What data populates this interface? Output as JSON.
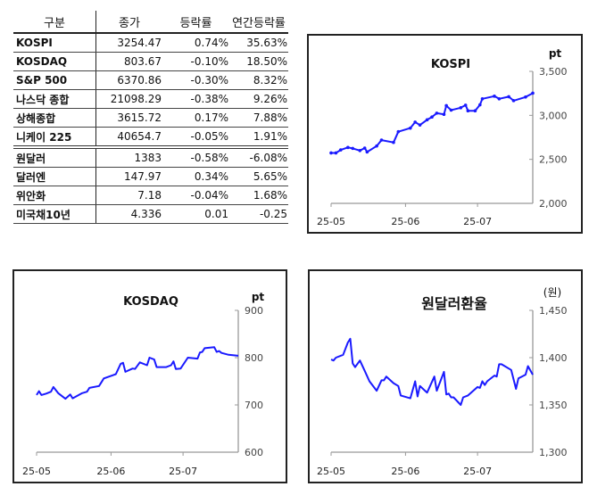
{
  "table": {
    "headers": [
      "구분",
      "종가",
      "등락률",
      "연간등락률"
    ],
    "rows": [
      [
        "KOSPI",
        "3254.47",
        "0.74%",
        "35.63%"
      ],
      [
        "KOSDAQ",
        "803.67",
        "-0.10%",
        "18.50%"
      ],
      [
        "S&P 500",
        "6370.86",
        "-0.30%",
        "8.32%"
      ],
      [
        "나스닥 종합",
        "21098.29",
        "-0.38%",
        "9.26%"
      ],
      [
        "상해종합",
        "3615.72",
        "0.17%",
        "7.88%"
      ],
      [
        "니케이 225",
        "40654.7",
        "-0.05%",
        "1.91%"
      ],
      [
        "원달러",
        "1383",
        "-0.58%",
        "-6.08%"
      ],
      [
        "달러엔",
        "147.97",
        "0.34%",
        "5.65%"
      ],
      [
        "위안화",
        "7.18",
        "-0.04%",
        "1.68%"
      ],
      [
        "미국채10년",
        "4.336",
        "0.01",
        "-0.25"
      ]
    ]
  },
  "chart_data": [
    {
      "type": "line",
      "title": "KOSPI",
      "unit": "pt",
      "color": "#1a1aff",
      "markers": true,
      "x_ticks": [
        "25-05",
        "25-06",
        "25-07"
      ],
      "y_ticks": [
        "2,000",
        "2,500",
        "3,000",
        "3,500"
      ],
      "ylim": [
        2000,
        3500
      ],
      "xlim": [
        "2025-05-01",
        "2025-07-24"
      ],
      "x": [
        "2025-05-01",
        "2025-05-03",
        "2025-05-05",
        "2025-05-08",
        "2025-05-10",
        "2025-05-13",
        "2025-05-15",
        "2025-05-16",
        "2025-05-20",
        "2025-05-22",
        "2025-05-27",
        "2025-05-29",
        "2025-06-03",
        "2025-06-05",
        "2025-06-07",
        "2025-06-10",
        "2025-06-12",
        "2025-06-14",
        "2025-06-17",
        "2025-06-18",
        "2025-06-20",
        "2025-06-24",
        "2025-06-26",
        "2025-06-27",
        "2025-06-30",
        "2025-07-02",
        "2025-07-03",
        "2025-07-08",
        "2025-07-10",
        "2025-07-14",
        "2025-07-16",
        "2025-07-21",
        "2025-07-24"
      ],
      "y": [
        2573,
        2573,
        2607,
        2635,
        2624,
        2600,
        2628,
        2584,
        2652,
        2719,
        2692,
        2814,
        2855,
        2923,
        2890,
        2950,
        2981,
        3025,
        3011,
        3110,
        3059,
        3086,
        3116,
        3052,
        3052,
        3120,
        3188,
        3218,
        3188,
        3212,
        3167,
        3208,
        3252
      ]
    },
    {
      "type": "line",
      "title": "KOSDAQ",
      "unit": "pt",
      "color": "#1a1aff",
      "markers": false,
      "x_ticks": [
        "25-05",
        "25-06",
        "25-07"
      ],
      "y_ticks": [
        "600",
        "700",
        "800",
        "900"
      ],
      "ylim": [
        600,
        900
      ],
      "xlim": [
        "2025-05-01",
        "2025-07-24"
      ],
      "x": [
        "2025-05-01",
        "2025-05-02",
        "2025-05-03",
        "2025-05-05",
        "2025-05-07",
        "2025-05-08",
        "2025-05-10",
        "2025-05-13",
        "2025-05-15",
        "2025-05-16",
        "2025-05-20",
        "2025-05-22",
        "2025-05-23",
        "2025-05-27",
        "2025-05-29",
        "2025-06-03",
        "2025-06-05",
        "2025-06-06",
        "2025-06-07",
        "2025-06-10",
        "2025-06-11",
        "2025-06-13",
        "2025-06-16",
        "2025-06-17",
        "2025-06-19",
        "2025-06-20",
        "2025-06-24",
        "2025-06-26",
        "2025-06-27",
        "2025-06-28",
        "2025-06-30",
        "2025-07-03",
        "2025-07-07",
        "2025-07-08",
        "2025-07-09",
        "2025-07-10",
        "2025-07-14",
        "2025-07-15",
        "2025-07-16",
        "2025-07-17",
        "2025-07-20",
        "2025-07-24"
      ],
      "y": [
        721,
        729,
        721,
        724,
        728,
        738,
        725,
        713,
        722,
        714,
        725,
        728,
        736,
        740,
        756,
        765,
        787,
        789,
        770,
        777,
        776,
        790,
        784,
        800,
        796,
        780,
        780,
        784,
        792,
        776,
        777,
        800,
        798,
        811,
        812,
        820,
        822,
        812,
        814,
        810,
        806,
        804
      ]
    },
    {
      "type": "line",
      "title": "원달러환율",
      "unit": "(원)",
      "color": "#1a1aff",
      "markers": false,
      "x_ticks": [
        "25-05",
        "25-06",
        "25-07"
      ],
      "y_ticks": [
        "1,300",
        "1,350",
        "1,400",
        "1,450"
      ],
      "ylim": [
        1300,
        1450
      ],
      "xlim": [
        "2025-05-01",
        "2025-07-24"
      ],
      "x": [
        "2025-05-01",
        "2025-05-02",
        "2025-05-03",
        "2025-05-06",
        "2025-05-08",
        "2025-05-09",
        "2025-05-10",
        "2025-05-11",
        "2025-05-13",
        "2025-05-15",
        "2025-05-17",
        "2025-05-20",
        "2025-05-22",
        "2025-05-23",
        "2025-05-24",
        "2025-05-27",
        "2025-05-29",
        "2025-05-30",
        "2025-06-03",
        "2025-06-05",
        "2025-06-06",
        "2025-06-07",
        "2025-06-10",
        "2025-06-13",
        "2025-06-14",
        "2025-06-17",
        "2025-06-18",
        "2025-06-19",
        "2025-06-20",
        "2025-06-21",
        "2025-06-24",
        "2025-06-25",
        "2025-06-27",
        "2025-07-01",
        "2025-07-02",
        "2025-07-03",
        "2025-07-04",
        "2025-07-05",
        "2025-07-08",
        "2025-07-09",
        "2025-07-10",
        "2025-07-11",
        "2025-07-15",
        "2025-07-17",
        "2025-07-18",
        "2025-07-21",
        "2025-07-22",
        "2025-07-24"
      ],
      "y": [
        1398,
        1397,
        1400,
        1403,
        1416,
        1420,
        1394,
        1390,
        1397,
        1386,
        1375,
        1365,
        1376,
        1376,
        1380,
        1373,
        1370,
        1360,
        1357,
        1375,
        1359,
        1370,
        1363,
        1380,
        1365,
        1385,
        1361,
        1362,
        1358,
        1358,
        1350,
        1358,
        1360,
        1369,
        1368,
        1375,
        1371,
        1375,
        1381,
        1380,
        1393,
        1393,
        1387,
        1367,
        1378,
        1382,
        1391,
        1382
      ]
    }
  ]
}
